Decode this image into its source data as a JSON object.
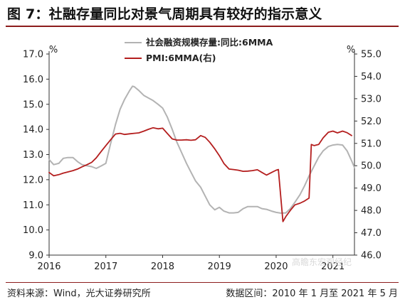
{
  "title": "图 7：社融存量同比对景气周期具有较好的指示意义",
  "footer": {
    "source": "资料来源：Wind，光大证券研究所",
    "range": "数据区间：2010 年 1 月至 2021 年 5 月"
  },
  "watermark": "高瞻东宏观经纪",
  "colors": {
    "grey_series": "#b3b3b3",
    "red_series": "#b41e1e",
    "rule": "#8c1c1c"
  },
  "chart_data": {
    "type": "line",
    "x_ticks": [
      "2016",
      "2017",
      "2018",
      "2019",
      "2020",
      "2021"
    ],
    "left_axis": {
      "unit": "%",
      "range": [
        9.0,
        17.0
      ],
      "ticks": [
        "9.0",
        "10.0",
        "11.0",
        "12.0",
        "13.0",
        "14.0",
        "15.0",
        "16.0",
        "17.0"
      ]
    },
    "right_axis": {
      "unit": "%",
      "range": [
        46.0,
        55.0
      ],
      "ticks": [
        "46.0",
        "47.0",
        "48.0",
        "49.0",
        "50.0",
        "51.0",
        "52.0",
        "53.0",
        "54.0",
        "55.0"
      ]
    },
    "legend_position": "top-center",
    "series": [
      {
        "name": "社会融资规模存量:同比:6MMA",
        "axis": "left",
        "color": "#b3b3b3",
        "points": [
          [
            2016.0,
            12.8
          ],
          [
            2016.08,
            12.6
          ],
          [
            2016.17,
            12.65
          ],
          [
            2016.25,
            12.85
          ],
          [
            2016.33,
            12.88
          ],
          [
            2016.42,
            12.88
          ],
          [
            2016.5,
            12.72
          ],
          [
            2016.58,
            12.6
          ],
          [
            2016.67,
            12.55
          ],
          [
            2016.75,
            12.52
          ],
          [
            2016.83,
            12.45
          ],
          [
            2016.92,
            12.55
          ],
          [
            2017.0,
            12.65
          ],
          [
            2017.08,
            13.4
          ],
          [
            2017.17,
            14.2
          ],
          [
            2017.25,
            14.8
          ],
          [
            2017.33,
            15.2
          ],
          [
            2017.42,
            15.55
          ],
          [
            2017.47,
            15.72
          ],
          [
            2017.5,
            15.7
          ],
          [
            2017.58,
            15.55
          ],
          [
            2017.67,
            15.35
          ],
          [
            2017.75,
            15.25
          ],
          [
            2017.83,
            15.15
          ],
          [
            2017.92,
            15.0
          ],
          [
            2018.0,
            14.85
          ],
          [
            2018.08,
            14.5
          ],
          [
            2018.17,
            14.0
          ],
          [
            2018.25,
            13.5
          ],
          [
            2018.33,
            13.1
          ],
          [
            2018.42,
            12.65
          ],
          [
            2018.5,
            12.3
          ],
          [
            2018.58,
            11.95
          ],
          [
            2018.67,
            11.7
          ],
          [
            2018.75,
            11.35
          ],
          [
            2018.83,
            11.0
          ],
          [
            2018.92,
            10.8
          ],
          [
            2019.0,
            10.9
          ],
          [
            2019.08,
            10.75
          ],
          [
            2019.17,
            10.68
          ],
          [
            2019.25,
            10.68
          ],
          [
            2019.33,
            10.7
          ],
          [
            2019.42,
            10.85
          ],
          [
            2019.5,
            10.93
          ],
          [
            2019.58,
            10.93
          ],
          [
            2019.67,
            10.93
          ],
          [
            2019.75,
            10.85
          ],
          [
            2019.83,
            10.82
          ],
          [
            2019.92,
            10.75
          ],
          [
            2020.0,
            10.7
          ],
          [
            2020.08,
            10.67
          ],
          [
            2020.17,
            10.68
          ],
          [
            2020.25,
            10.85
          ],
          [
            2020.33,
            11.1
          ],
          [
            2020.42,
            11.4
          ],
          [
            2020.5,
            11.75
          ],
          [
            2020.58,
            12.15
          ],
          [
            2020.67,
            12.55
          ],
          [
            2020.75,
            12.9
          ],
          [
            2020.83,
            13.15
          ],
          [
            2020.92,
            13.32
          ],
          [
            2021.0,
            13.38
          ],
          [
            2021.08,
            13.4
          ],
          [
            2021.17,
            13.38
          ],
          [
            2021.25,
            13.15
          ],
          [
            2021.33,
            12.75
          ],
          [
            2021.38,
            12.48
          ]
        ]
      },
      {
        "name": "PMI:6MMA(右)",
        "axis": "right",
        "color": "#b41e1e",
        "points": [
          [
            2016.0,
            49.7
          ],
          [
            2016.08,
            49.55
          ],
          [
            2016.17,
            49.6
          ],
          [
            2016.25,
            49.67
          ],
          [
            2016.33,
            49.72
          ],
          [
            2016.42,
            49.78
          ],
          [
            2016.5,
            49.85
          ],
          [
            2016.58,
            49.95
          ],
          [
            2016.67,
            50.05
          ],
          [
            2016.75,
            50.15
          ],
          [
            2016.83,
            50.35
          ],
          [
            2016.92,
            50.65
          ],
          [
            2017.0,
            50.9
          ],
          [
            2017.08,
            51.15
          ],
          [
            2017.17,
            51.42
          ],
          [
            2017.25,
            51.45
          ],
          [
            2017.33,
            51.4
          ],
          [
            2017.42,
            51.43
          ],
          [
            2017.5,
            51.45
          ],
          [
            2017.58,
            51.47
          ],
          [
            2017.67,
            51.55
          ],
          [
            2017.75,
            51.63
          ],
          [
            2017.83,
            51.7
          ],
          [
            2017.92,
            51.65
          ],
          [
            2018.0,
            51.68
          ],
          [
            2018.08,
            51.45
          ],
          [
            2018.17,
            51.2
          ],
          [
            2018.25,
            51.15
          ],
          [
            2018.33,
            51.15
          ],
          [
            2018.42,
            51.16
          ],
          [
            2018.5,
            51.14
          ],
          [
            2018.58,
            51.16
          ],
          [
            2018.67,
            51.35
          ],
          [
            2018.75,
            51.27
          ],
          [
            2018.83,
            51.05
          ],
          [
            2018.92,
            50.75
          ],
          [
            2019.0,
            50.45
          ],
          [
            2019.08,
            50.1
          ],
          [
            2019.17,
            49.85
          ],
          [
            2019.25,
            49.83
          ],
          [
            2019.33,
            49.8
          ],
          [
            2019.42,
            49.75
          ],
          [
            2019.5,
            49.76
          ],
          [
            2019.58,
            49.78
          ],
          [
            2019.67,
            49.82
          ],
          [
            2019.75,
            49.7
          ],
          [
            2019.83,
            49.58
          ],
          [
            2019.92,
            49.7
          ],
          [
            2020.0,
            49.8
          ],
          [
            2020.04,
            49.83
          ],
          [
            2020.12,
            47.5
          ],
          [
            2020.17,
            47.72
          ],
          [
            2020.25,
            48.0
          ],
          [
            2020.33,
            48.25
          ],
          [
            2020.42,
            48.32
          ],
          [
            2020.5,
            48.42
          ],
          [
            2020.58,
            48.55
          ],
          [
            2020.62,
            50.95
          ],
          [
            2020.67,
            50.9
          ],
          [
            2020.75,
            50.95
          ],
          [
            2020.83,
            51.25
          ],
          [
            2020.92,
            51.5
          ],
          [
            2021.0,
            51.55
          ],
          [
            2021.08,
            51.47
          ],
          [
            2021.17,
            51.55
          ],
          [
            2021.25,
            51.48
          ],
          [
            2021.33,
            51.35
          ]
        ]
      }
    ]
  }
}
